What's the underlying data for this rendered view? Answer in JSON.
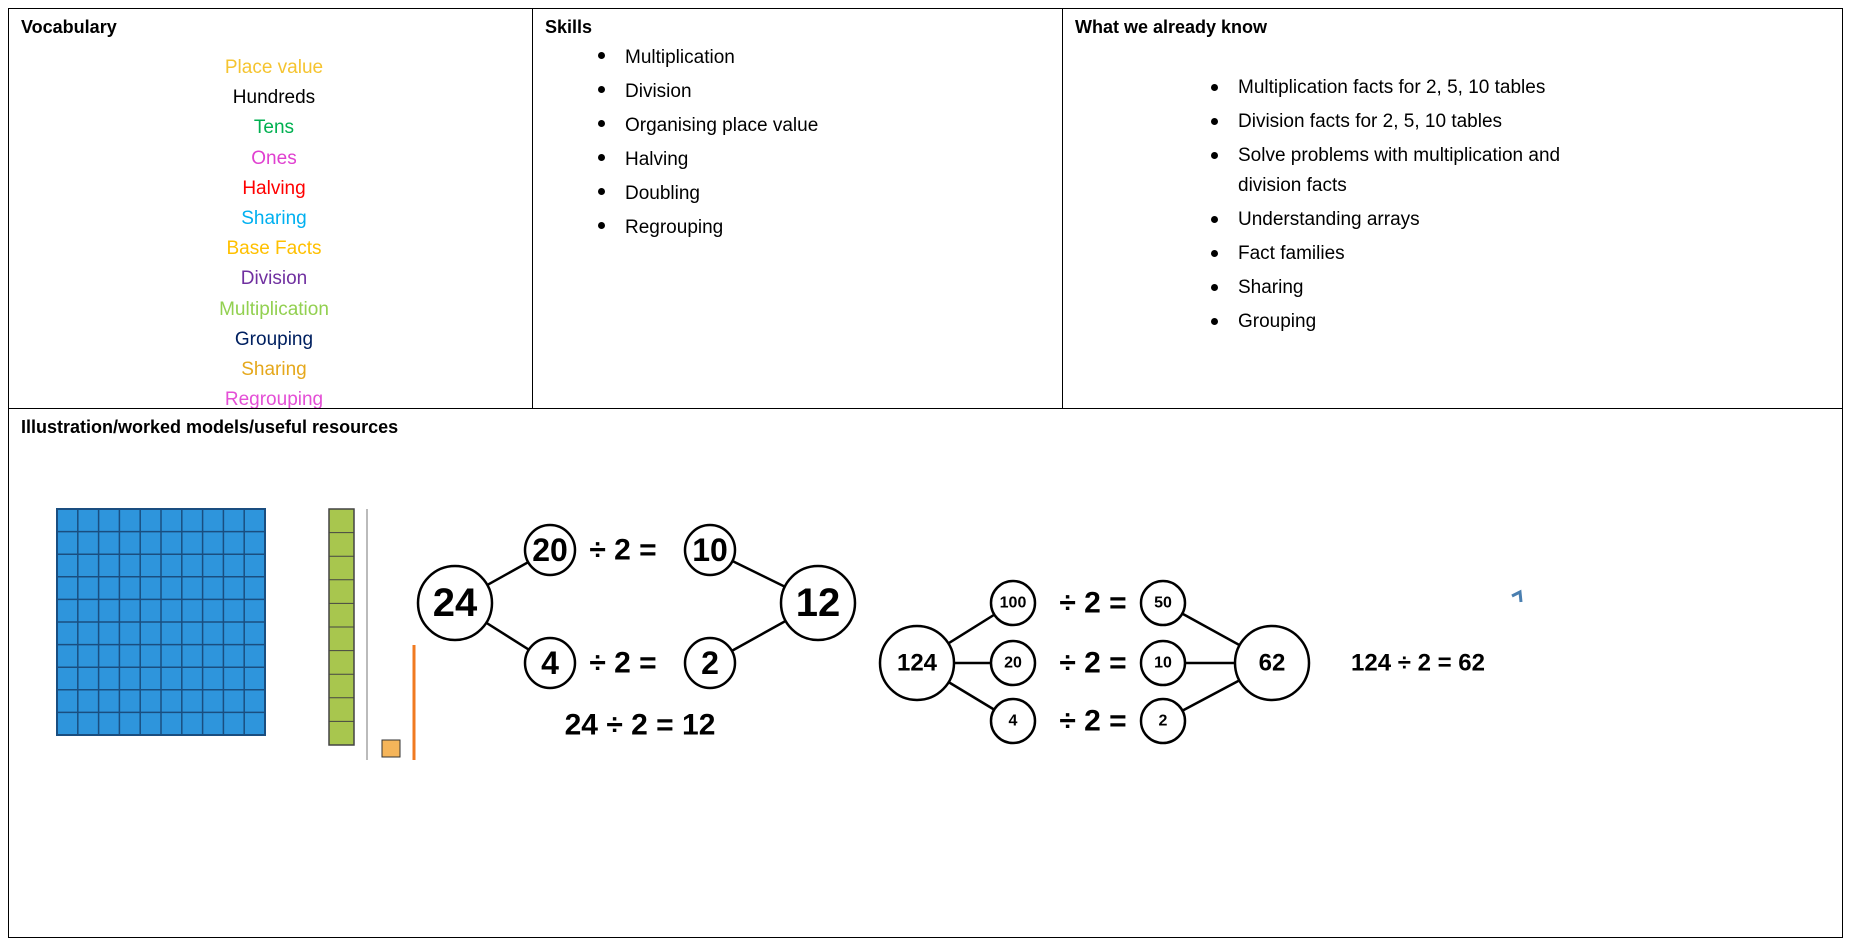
{
  "vocabulary": {
    "heading": "Vocabulary",
    "words": [
      {
        "text": "Place value",
        "color": "#f5c430"
      },
      {
        "text": "Hundreds",
        "color": "#000000"
      },
      {
        "text": "Tens",
        "color": "#00b050"
      },
      {
        "text": "Ones",
        "color": "#e03fd0"
      },
      {
        "text": "Halving",
        "color": "#ff0000"
      },
      {
        "text": "Sharing",
        "color": "#00b0f0"
      },
      {
        "text": "Base Facts",
        "color": "#ffc000"
      },
      {
        "text": "Division",
        "color": "#7030a0"
      },
      {
        "text": "Multiplication",
        "color": "#92d050"
      },
      {
        "text": "Grouping",
        "color": "#002060"
      },
      {
        "text": "Sharing",
        "color": "#e5a81c"
      },
      {
        "text": "Regrouping",
        "color": "#e44fd6"
      }
    ]
  },
  "skills": {
    "heading": "Skills",
    "items": [
      "Multiplication",
      "Division",
      "Organising place value",
      "Halving",
      "Doubling",
      "Regrouping"
    ]
  },
  "known": {
    "heading": "What we already know",
    "items": [
      "Multiplication facts for 2, 5, 10 tables",
      "Division facts for 2, 5, 10 tables",
      "Solve problems with multiplication and division facts",
      "Understanding arrays",
      "Fact families",
      "Sharing",
      "Grouping"
    ]
  },
  "illustration": {
    "heading": "Illustration/worked models/useful resources",
    "diagrams": [
      {
        "whole": "24",
        "result": "12",
        "equation": "24 ÷ 2 = 12",
        "parts": [
          {
            "part": "20",
            "operation": "÷ 2 =",
            "half": "10"
          },
          {
            "part": "4",
            "operation": "÷ 2 =",
            "half": "2"
          }
        ]
      },
      {
        "whole": "124",
        "result": "62",
        "equation": "124 ÷ 2 = 62",
        "parts": [
          {
            "part": "100",
            "operation": "÷ 2 =",
            "half": "50"
          },
          {
            "part": "20",
            "operation": "÷ 2 =",
            "half": "10"
          },
          {
            "part": "4",
            "operation": "÷ 2 =",
            "half": "2"
          }
        ]
      }
    ]
  }
}
